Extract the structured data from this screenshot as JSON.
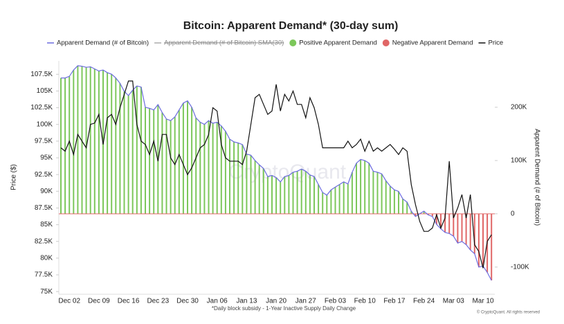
{
  "chart_data": {
    "type": "line",
    "title": "Bitcoin: Apparent Demand* (30-day sum)",
    "ylabel": "Price ($)",
    "y2label": "Apparent Demand (# of Bitcoin)",
    "footnote": "*Daily block subsidy - 1-Year Inactive Supply Daily Change",
    "watermark": "CryptoQuant",
    "credit": "© CryptoQuant. All rights reserved",
    "categories": [
      null,
      null,
      "Dec 02",
      null,
      null,
      null,
      null,
      null,
      null,
      "Dec 09",
      null,
      null,
      null,
      null,
      null,
      null,
      "Dec 16",
      null,
      null,
      null,
      null,
      null,
      null,
      "Dec 23",
      null,
      null,
      null,
      null,
      null,
      null,
      "Dec 30",
      null,
      null,
      null,
      null,
      null,
      null,
      "Jan 06",
      null,
      null,
      null,
      null,
      null,
      null,
      "Jan 13",
      null,
      null,
      null,
      null,
      null,
      null,
      "Jan 20",
      null,
      null,
      null,
      null,
      null,
      null,
      "Jan 27",
      null,
      null,
      null,
      null,
      null,
      null,
      "Feb 03",
      null,
      null,
      null,
      null,
      null,
      null,
      "Feb 10",
      null,
      null,
      null,
      null,
      null,
      null,
      "Feb 17",
      null,
      null,
      null,
      null,
      null,
      null,
      "Feb 24",
      null,
      null,
      null,
      null,
      null,
      null,
      "Mar 03",
      null,
      null,
      null,
      null,
      null,
      null,
      "Mar 10",
      null,
      null
    ],
    "series": [
      {
        "name": "Apparent Demand (# of Bitcoin)",
        "color": "#6b6bdf",
        "axis": "y2",
        "values": [
          255000,
          255000,
          258000,
          270000,
          278000,
          277000,
          275000,
          276000,
          272000,
          268000,
          270000,
          265000,
          262000,
          255000,
          245000,
          230000,
          222000,
          232000,
          240000,
          238000,
          200000,
          198000,
          195000,
          205000,
          190000,
          178000,
          175000,
          182000,
          195000,
          208000,
          212000,
          200000,
          180000,
          172000,
          168000,
          175000,
          170000,
          172000,
          165000,
          155000,
          140000,
          135000,
          133000,
          130000,
          112000,
          110000,
          100000,
          92000,
          85000,
          70000,
          72000,
          68000,
          60000,
          70000,
          72000,
          78000,
          80000,
          84000,
          80000,
          73000,
          70000,
          55000,
          40000,
          35000,
          45000,
          50000,
          55000,
          60000,
          56000,
          78000,
          95000,
          102000,
          100000,
          95000,
          80000,
          78000,
          75000,
          62000,
          52000,
          45000,
          42000,
          28000,
          22000,
          5000,
          -5000,
          0,
          5000,
          -2000,
          -5000,
          -20000,
          -28000,
          -35000,
          -37000,
          -42000,
          -55000,
          -52000,
          -58000,
          -68000,
          -75000,
          -100000,
          -98000,
          -110000,
          -125000
        ]
      },
      {
        "name": "Price",
        "color": "#111111",
        "values": [
          96500,
          96000,
          97500,
          95500,
          98500,
          97500,
          96500,
          100000,
          100200,
          101500,
          97000,
          101000,
          101500,
          100000,
          102500,
          104500,
          106500,
          106500,
          100000,
          97500,
          97000,
          95500,
          97500,
          94500,
          98500,
          98500,
          95000,
          94000,
          95500,
          94000,
          92500,
          93500,
          95000,
          96500,
          97000,
          98500,
          102500,
          102000,
          97000,
          95000,
          94500,
          94500,
          94500,
          94000,
          96000,
          100000,
          104000,
          104500,
          103000,
          101500,
          102000,
          106000,
          102000,
          104500,
          103500,
          105000,
          103000,
          103000,
          101000,
          104000,
          102500,
          100000,
          96500,
          96500,
          96500,
          96500,
          96500,
          96500,
          97500,
          96500,
          97000,
          97800,
          96000,
          97500,
          96000,
          96500,
          96000,
          96500,
          97000,
          96300,
          95500,
          96500,
          96000,
          91000,
          88000,
          85500,
          84000,
          84000,
          84500,
          86500,
          84500,
          86000,
          94500,
          86000,
          87500,
          89500,
          86000,
          89500,
          82000,
          81000,
          78500,
          82500,
          83500
        ]
      }
    ],
    "sma_legend": {
      "name": "Apparent Demand (# of Bitcoin) SMA(30)",
      "color": "#aaaaaa"
    },
    "bar_legend": [
      {
        "name": "Positive Apparent Demand",
        "color": "#7cc75a"
      },
      {
        "name": "Negative Apparent Demand",
        "color": "#e06666"
      }
    ],
    "ylim": [
      74600,
      109500
    ],
    "yticks": [
      {
        "value": 75000,
        "label": "75K"
      },
      {
        "value": 77500,
        "label": "77.5K"
      },
      {
        "value": 80000,
        "label": "80K"
      },
      {
        "value": 82500,
        "label": "82.5K"
      },
      {
        "value": 85000,
        "label": "85K"
      },
      {
        "value": 87500,
        "label": "87.5K"
      },
      {
        "value": 90000,
        "label": "90K"
      },
      {
        "value": 92500,
        "label": "92.5K"
      },
      {
        "value": 95000,
        "label": "95K"
      },
      {
        "value": 97500,
        "label": "97.5K"
      },
      {
        "value": 100000,
        "label": "100K"
      },
      {
        "value": 102500,
        "label": "102.5K"
      },
      {
        "value": 105000,
        "label": "105K"
      },
      {
        "value": 107500,
        "label": "107.5K"
      }
    ],
    "y2lim": [
      -151000,
      287000
    ],
    "y2ticks": [
      {
        "value": -100000,
        "label": "-100K"
      },
      0,
      {
        "value": 100000,
        "label": "100K"
      },
      {
        "value": 200000,
        "label": "200K"
      }
    ]
  }
}
